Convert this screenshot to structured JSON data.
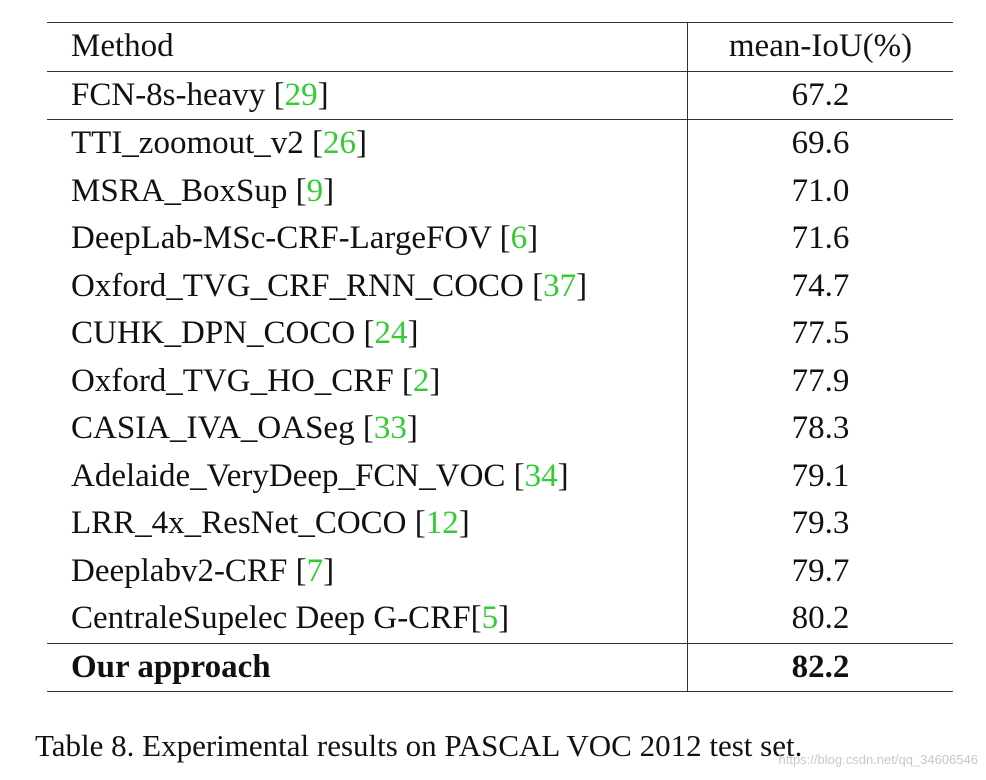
{
  "table": {
    "headers": {
      "method": "Method",
      "metric": "mean-IoU(%)"
    },
    "rows": [
      {
        "name": "FCN-8s-heavy ",
        "ref": "29",
        "value": "67.2"
      },
      {
        "name": "TTI_zoomout_v2 ",
        "ref": "26",
        "value": "69.6"
      },
      {
        "name": "MSRA_BoxSup ",
        "ref": "9",
        "value": "71.0"
      },
      {
        "name": "DeepLab-MSc-CRF-LargeFOV ",
        "ref": "6",
        "value": "71.6"
      },
      {
        "name": "Oxford_TVG_CRF_RNN_COCO ",
        "ref": "37",
        "value": "74.7"
      },
      {
        "name": "CUHK_DPN_COCO ",
        "ref": "24",
        "value": "77.5"
      },
      {
        "name": "Oxford_TVG_HO_CRF ",
        "ref": "2",
        "value": "77.9"
      },
      {
        "name": "CASIA_IVA_OASeg ",
        "ref": "33",
        "value": "78.3"
      },
      {
        "name": "Adelaide_VeryDeep_FCN_VOC ",
        "ref": "34",
        "value": "79.1"
      },
      {
        "name": "LRR_4x_ResNet_COCO ",
        "ref": "12",
        "value": "79.3"
      },
      {
        "name": "Deeplabv2-CRF ",
        "ref": "7",
        "value": "79.7"
      },
      {
        "name": "CentraleSupelec Deep G-CRF",
        "ref": "5",
        "value": "80.2"
      }
    ],
    "ours": {
      "name": "Our approach",
      "value": "82.2"
    }
  },
  "caption": "Table 8. Experimental results on PASCAL VOC 2012 test set.",
  "watermark": "https://blog.csdn.net/qq_34606546",
  "colors": {
    "reference": "#33cc33",
    "rule": "#333333"
  }
}
